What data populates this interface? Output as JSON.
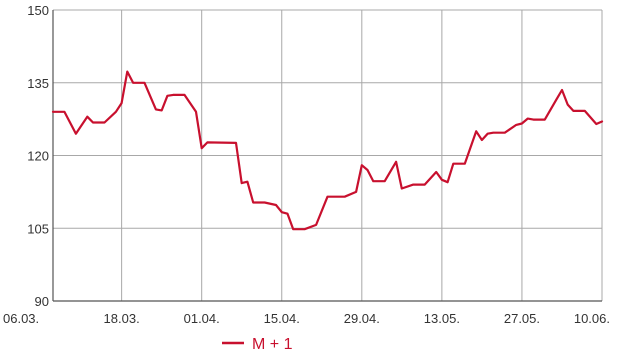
{
  "chart_data": {
    "type": "line",
    "title": "",
    "xlabel": "",
    "ylabel": "",
    "ylim": [
      90,
      150
    ],
    "y_ticks": [
      90,
      105,
      120,
      135,
      150
    ],
    "x_ticks": [
      "06.03.",
      "18.03.",
      "01.04.",
      "15.04.",
      "29.04.",
      "13.05.",
      "27.05.",
      "10.06."
    ],
    "x_range": [
      "06.03.",
      "10.06."
    ],
    "grid": true,
    "legend": "bottom-left",
    "series": [
      {
        "name": "M + 1",
        "color": "#c8102e",
        "points": [
          [
            "06.03.",
            129.0
          ],
          [
            "08.03.",
            129.0
          ],
          [
            "10.03.",
            124.5
          ],
          [
            "12.03.",
            128.0
          ],
          [
            "13.03.",
            126.8
          ],
          [
            "15.03.",
            126.8
          ],
          [
            "17.03.",
            129.0
          ],
          [
            "18.03.",
            130.8
          ],
          [
            "19.03.",
            137.3
          ],
          [
            "20.03.",
            135.0
          ],
          [
            "22.03.",
            135.0
          ],
          [
            "24.03.",
            129.5
          ],
          [
            "25.03.",
            129.3
          ],
          [
            "26.03.",
            132.3
          ],
          [
            "27.03.",
            132.5
          ],
          [
            "29.03.",
            132.5
          ],
          [
            "31.03.",
            129.0
          ],
          [
            "01.04.",
            121.5
          ],
          [
            "02.04.",
            122.7
          ],
          [
            "07.04.",
            122.6
          ],
          [
            "08.04.",
            114.3
          ],
          [
            "09.04.",
            114.6
          ],
          [
            "10.04.",
            110.3
          ],
          [
            "12.04.",
            110.3
          ],
          [
            "14.04.",
            109.8
          ],
          [
            "15.04.",
            108.3
          ],
          [
            "16.04.",
            108.0
          ],
          [
            "17.04.",
            104.8
          ],
          [
            "19.04.",
            104.8
          ],
          [
            "21.04.",
            105.7
          ],
          [
            "23.04.",
            111.5
          ],
          [
            "26.04.",
            111.5
          ],
          [
            "28.04.",
            112.5
          ],
          [
            "29.04.",
            118.0
          ],
          [
            "30.04.",
            117.0
          ],
          [
            "01.05.",
            114.7
          ],
          [
            "03.05.",
            114.7
          ],
          [
            "05.05.",
            118.7
          ],
          [
            "06.05.",
            113.2
          ],
          [
            "08.05.",
            114.0
          ],
          [
            "10.05.",
            114.0
          ],
          [
            "12.05.",
            116.6
          ],
          [
            "13.05.",
            115.0
          ],
          [
            "14.05.",
            114.5
          ],
          [
            "15.05.",
            118.3
          ],
          [
            "17.05.",
            118.3
          ],
          [
            "19.05.",
            125.0
          ],
          [
            "20.05.",
            123.2
          ],
          [
            "21.05.",
            124.5
          ],
          [
            "22.05.",
            124.7
          ],
          [
            "24.05.",
            124.7
          ],
          [
            "26.05.",
            126.3
          ],
          [
            "27.05.",
            126.6
          ],
          [
            "28.05.",
            127.6
          ],
          [
            "29.05.",
            127.4
          ],
          [
            "31.05.",
            127.4
          ],
          [
            "02.06.",
            131.5
          ],
          [
            "03.06.",
            133.5
          ],
          [
            "04.06.",
            130.5
          ],
          [
            "05.06.",
            129.2
          ],
          [
            "07.06.",
            129.2
          ],
          [
            "09.06.",
            126.5
          ],
          [
            "10.06.",
            127.0
          ]
        ]
      }
    ]
  }
}
